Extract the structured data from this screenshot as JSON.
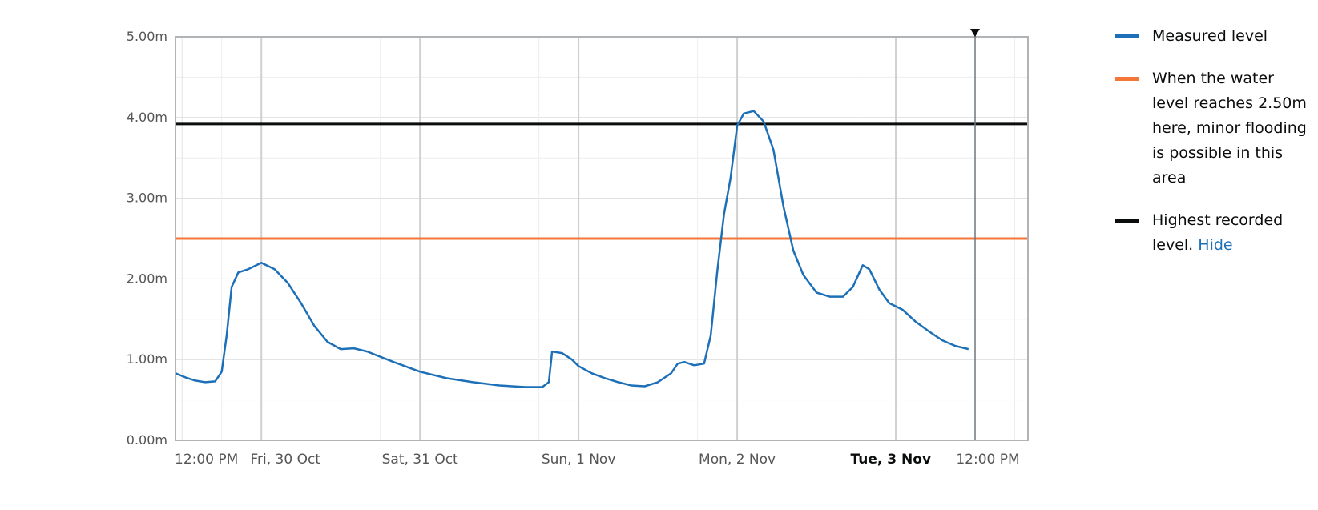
{
  "chart_data": {
    "type": "line",
    "ylim": [
      0,
      5
    ],
    "y_ticks": [
      {
        "value": 0,
        "label": "0.00m"
      },
      {
        "value": 1,
        "label": "1.00m"
      },
      {
        "value": 2,
        "label": "2.00m"
      },
      {
        "value": 3,
        "label": "3.00m"
      },
      {
        "value": 4,
        "label": "4.00m"
      },
      {
        "value": 5,
        "label": "5.00m"
      }
    ],
    "x_range": [
      "2020-10-29 11:00",
      "2020-11-03 20:00"
    ],
    "x_ticks": [
      {
        "x": "2020-10-29 12:00",
        "label": "12:00 PM",
        "bold": false
      },
      {
        "x": "2020-10-30 00:00",
        "label": "Fri, 30 Oct",
        "bold": false
      },
      {
        "x": "2020-10-31 00:00",
        "label": "Sat, 31 Oct",
        "bold": false
      },
      {
        "x": "2020-11-01 00:00",
        "label": "Sun, 1 Nov",
        "bold": false
      },
      {
        "x": "2020-11-02 00:00",
        "label": "Mon, 2 Nov",
        "bold": false
      },
      {
        "x": "2020-11-03 00:00",
        "label": "Tue, 3 Nov",
        "bold": true
      },
      {
        "x": "2020-11-03 12:00",
        "label": "12:00 PM",
        "bold": false
      }
    ],
    "grid": true,
    "current_time_marker": "2020-11-03 12:00",
    "series": [
      {
        "name": "Measured level",
        "color": "#1d70b8",
        "points": [
          [
            "2020-10-29 11:00",
            0.83
          ],
          [
            "2020-10-29 12:30",
            0.78
          ],
          [
            "2020-10-29 14:00",
            0.74
          ],
          [
            "2020-10-29 15:30",
            0.72
          ],
          [
            "2020-10-29 17:00",
            0.73
          ],
          [
            "2020-10-29 18:00",
            0.85
          ],
          [
            "2020-10-29 18:45",
            1.3
          ],
          [
            "2020-10-29 19:30",
            1.9
          ],
          [
            "2020-10-29 20:30",
            2.08
          ],
          [
            "2020-10-29 22:00",
            2.12
          ],
          [
            "2020-10-30 00:00",
            2.2
          ],
          [
            "2020-10-30 02:00",
            2.12
          ],
          [
            "2020-10-30 04:00",
            1.95
          ],
          [
            "2020-10-30 06:00",
            1.7
          ],
          [
            "2020-10-30 08:00",
            1.42
          ],
          [
            "2020-10-30 10:00",
            1.22
          ],
          [
            "2020-10-30 12:00",
            1.13
          ],
          [
            "2020-10-30 14:00",
            1.14
          ],
          [
            "2020-10-30 16:00",
            1.1
          ],
          [
            "2020-10-30 20:00",
            0.97
          ],
          [
            "2020-10-31 00:00",
            0.85
          ],
          [
            "2020-10-31 04:00",
            0.77
          ],
          [
            "2020-10-31 08:00",
            0.72
          ],
          [
            "2020-10-31 12:00",
            0.68
          ],
          [
            "2020-10-31 16:00",
            0.66
          ],
          [
            "2020-10-31 18:30",
            0.66
          ],
          [
            "2020-10-31 19:30",
            0.72
          ],
          [
            "2020-10-31 20:00",
            1.1
          ],
          [
            "2020-10-31 21:30",
            1.08
          ],
          [
            "2020-10-31 23:00",
            1.0
          ],
          [
            "2020-11-01 00:00",
            0.92
          ],
          [
            "2020-11-01 02:00",
            0.83
          ],
          [
            "2020-11-01 04:00",
            0.77
          ],
          [
            "2020-11-01 06:00",
            0.72
          ],
          [
            "2020-11-01 08:00",
            0.68
          ],
          [
            "2020-11-01 10:00",
            0.67
          ],
          [
            "2020-11-01 12:00",
            0.72
          ],
          [
            "2020-11-01 14:00",
            0.83
          ],
          [
            "2020-11-01 15:00",
            0.95
          ],
          [
            "2020-11-01 16:00",
            0.97
          ],
          [
            "2020-11-01 17:30",
            0.93
          ],
          [
            "2020-11-01 19:00",
            0.95
          ],
          [
            "2020-11-01 20:00",
            1.3
          ],
          [
            "2020-11-01 21:00",
            2.1
          ],
          [
            "2020-11-01 22:00",
            2.8
          ],
          [
            "2020-11-01 23:00",
            3.25
          ],
          [
            "2020-11-02 00:00",
            3.9
          ],
          [
            "2020-11-02 01:00",
            4.05
          ],
          [
            "2020-11-02 02:30",
            4.08
          ],
          [
            "2020-11-02 04:00",
            3.95
          ],
          [
            "2020-11-02 05:30",
            3.6
          ],
          [
            "2020-11-02 07:00",
            2.9
          ],
          [
            "2020-11-02 08:30",
            2.35
          ],
          [
            "2020-11-02 10:00",
            2.05
          ],
          [
            "2020-11-02 12:00",
            1.83
          ],
          [
            "2020-11-02 14:00",
            1.78
          ],
          [
            "2020-11-02 16:00",
            1.78
          ],
          [
            "2020-11-02 17:30",
            1.9
          ],
          [
            "2020-11-02 19:00",
            2.17
          ],
          [
            "2020-11-02 20:00",
            2.12
          ],
          [
            "2020-11-02 21:30",
            1.87
          ],
          [
            "2020-11-02 23:00",
            1.7
          ],
          [
            "2020-11-03 01:00",
            1.62
          ],
          [
            "2020-11-03 03:00",
            1.47
          ],
          [
            "2020-11-03 05:00",
            1.35
          ],
          [
            "2020-11-03 07:00",
            1.24
          ],
          [
            "2020-11-03 09:00",
            1.17
          ],
          [
            "2020-11-03 11:00",
            1.13
          ]
        ]
      },
      {
        "name": "When the water level reaches 2.50m here, minor flooding is possible in this area",
        "color": "#f47738",
        "y": 2.5
      },
      {
        "name": "Highest recorded level.",
        "color": "#0b0c0c",
        "y": 3.92
      }
    ]
  },
  "legend": {
    "items": [
      {
        "label": "Measured level",
        "color": "#1d70b8"
      },
      {
        "label": "When the water level reaches 2.50m here, minor flooding is possible in this area",
        "color": "#f47738"
      },
      {
        "label": "Highest recorded level.",
        "color": "#0b0c0c",
        "link": "Hide"
      }
    ]
  }
}
